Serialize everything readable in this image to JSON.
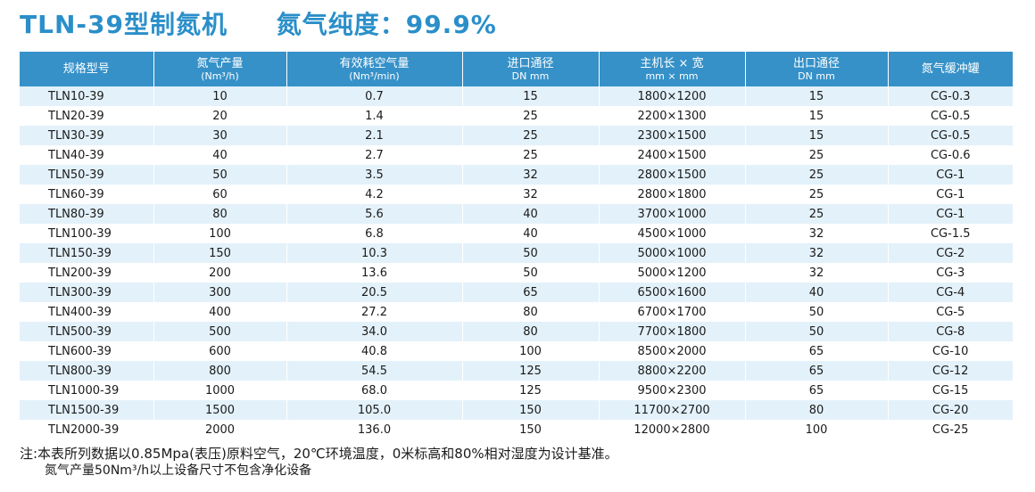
{
  "title": {
    "model": "TLN-39型制氮机",
    "purity": "氮气纯度：99.9%"
  },
  "colors": {
    "accent": "#3691c8",
    "title": "#2a8fc9",
    "stripe": "#e3f1fa"
  },
  "table": {
    "headers": [
      {
        "label": "规格型号",
        "sub": ""
      },
      {
        "label": "氮气产量",
        "sub": "(Nm³/h)"
      },
      {
        "label": "有效耗空气量",
        "sub": "(Nm³/min)"
      },
      {
        "label": "进口通径",
        "sub": "DN mm"
      },
      {
        "label": "主机长 × 宽",
        "sub": "mm × mm"
      },
      {
        "label": "出口通径",
        "sub": "DN mm"
      },
      {
        "label": "氮气缓冲罐",
        "sub": ""
      }
    ],
    "rows": [
      [
        "TLN10-39",
        "10",
        "0.7",
        "15",
        "1800×1200",
        "15",
        "CG-0.3"
      ],
      [
        "TLN20-39",
        "20",
        "1.4",
        "25",
        "2200×1300",
        "15",
        "CG-0.5"
      ],
      [
        "TLN30-39",
        "30",
        "2.1",
        "25",
        "2300×1500",
        "15",
        "CG-0.5"
      ],
      [
        "TLN40-39",
        "40",
        "2.7",
        "25",
        "2400×1500",
        "25",
        "CG-0.6"
      ],
      [
        "TLN50-39",
        "50",
        "3.5",
        "32",
        "2800×1500",
        "25",
        "CG-1"
      ],
      [
        "TLN60-39",
        "60",
        "4.2",
        "32",
        "2800×1800",
        "25",
        "CG-1"
      ],
      [
        "TLN80-39",
        "80",
        "5.6",
        "40",
        "3700×1000",
        "25",
        "CG-1"
      ],
      [
        "TLN100-39",
        "100",
        "6.8",
        "40",
        "4500×1000",
        "32",
        "CG-1.5"
      ],
      [
        "TLN150-39",
        "150",
        "10.3",
        "50",
        "5000×1000",
        "32",
        "CG-2"
      ],
      [
        "TLN200-39",
        "200",
        "13.6",
        "50",
        "5000×1200",
        "32",
        "CG-3"
      ],
      [
        "TLN300-39",
        "300",
        "20.5",
        "65",
        "6500×1600",
        "40",
        "CG-4"
      ],
      [
        "TLN400-39",
        "400",
        "27.2",
        "80",
        "6700×1700",
        "50",
        "CG-5"
      ],
      [
        "TLN500-39",
        "500",
        "34.0",
        "80",
        "7700×1800",
        "50",
        "CG-8"
      ],
      [
        "TLN600-39",
        "600",
        "40.8",
        "100",
        "8500×2000",
        "65",
        "CG-10"
      ],
      [
        "TLN800-39",
        "800",
        "54.5",
        "125",
        "8800×2200",
        "65",
        "CG-12"
      ],
      [
        "TLN1000-39",
        "1000",
        "68.0",
        "125",
        "9500×2300",
        "65",
        "CG-15"
      ],
      [
        "TLN1500-39",
        "1500",
        "105.0",
        "150",
        "11700×2700",
        "80",
        "CG-20"
      ],
      [
        "TLN2000-39",
        "2000",
        "136.0",
        "150",
        "12000×2800",
        "100",
        "CG-25"
      ]
    ]
  },
  "notes": {
    "line1": "注:本表所列数据以0.85Mpa(表压)原料空气，20℃环境温度，0米标高和80%相对湿度为设计基准。",
    "line2": "氮气产量50Nm³/h以上设备尺寸不包含净化设备"
  }
}
